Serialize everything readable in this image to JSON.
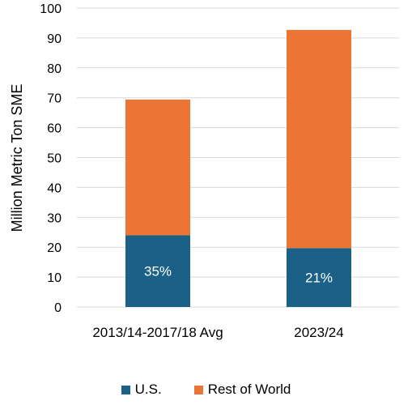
{
  "colors": {
    "us": "#1b6187",
    "rest": "#ec7535",
    "grid": "#d9d9d9"
  },
  "chart_data": {
    "type": "bar",
    "stacked": true,
    "title": "",
    "xlabel": "",
    "ylabel": "Million  Metric Ton SME",
    "ylim": [
      0,
      100
    ],
    "yticks": [
      0,
      10,
      20,
      30,
      40,
      50,
      60,
      70,
      80,
      90,
      100
    ],
    "categories": [
      "2013/14-2017/18 Avg",
      "2023/24"
    ],
    "series": [
      {
        "name": "U.S.",
        "values": [
          24,
          19.7
        ],
        "data_labels": [
          "35%",
          "21%"
        ]
      },
      {
        "name": "Rest of World",
        "values": [
          45.4,
          73
        ]
      }
    ],
    "grid": true,
    "legend": "bottom"
  }
}
